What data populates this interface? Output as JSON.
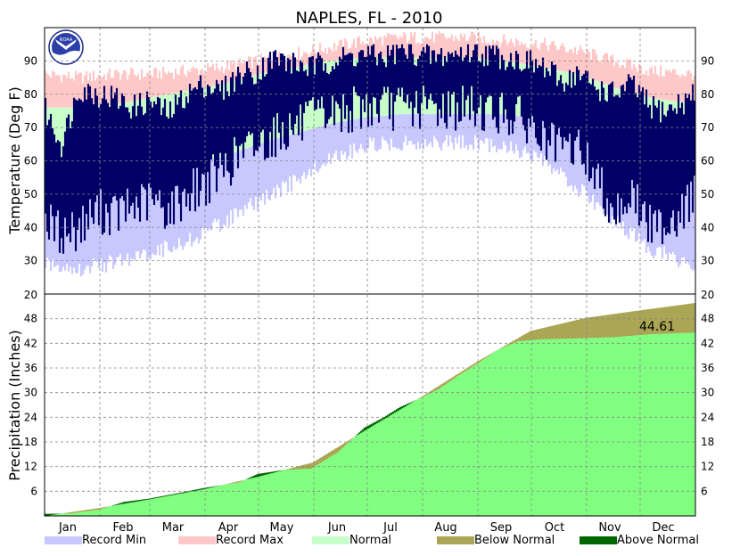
{
  "chart_data": {
    "type": "area",
    "title": "NAPLES, FL - 2010",
    "months": [
      "Jan",
      "Feb",
      "Mar",
      "Apr",
      "May",
      "Jun",
      "Jul",
      "Aug",
      "Sep",
      "Oct",
      "Nov",
      "Dec"
    ],
    "legend": [
      "Record Min",
      "Record Max",
      "Normal",
      "Below Normal",
      "Above Normal"
    ],
    "colors": {
      "record_min": "#c8c8ff",
      "record_max": "#ffc8c8",
      "normal": "#c8ffc8",
      "observed": "#000066",
      "precip_observed": "#80ff80",
      "below_normal": "#aaa655",
      "above_normal": "#006600"
    },
    "temperature": {
      "ylabel": "Temperature (Deg F)",
      "ylim": [
        20,
        100
      ],
      "yticks": [
        30,
        40,
        50,
        60,
        70,
        80,
        90
      ],
      "grid": true,
      "record_max": {
        "day": [
          1,
          20,
          40,
          60,
          80,
          100,
          120,
          140,
          160,
          180,
          200,
          220,
          240,
          260,
          280,
          300,
          320,
          340,
          365
        ],
        "value": [
          86,
          85,
          86,
          86,
          87,
          88,
          90,
          92,
          94,
          96,
          97,
          97,
          97,
          96,
          95,
          93,
          90,
          87,
          86
        ]
      },
      "normal_high": {
        "day": [
          1,
          20,
          40,
          60,
          80,
          100,
          120,
          140,
          160,
          180,
          200,
          220,
          240,
          260,
          280,
          300,
          320,
          340,
          365
        ],
        "value": [
          76,
          76,
          77,
          79,
          81,
          83,
          86,
          88,
          90,
          91,
          91,
          91,
          91,
          90,
          88,
          86,
          82,
          79,
          77
        ]
      },
      "normal_low": {
        "day": [
          1,
          20,
          40,
          60,
          80,
          100,
          120,
          140,
          160,
          180,
          200,
          220,
          240,
          260,
          280,
          300,
          320,
          340,
          365
        ],
        "value": [
          54,
          53,
          54,
          57,
          59,
          61,
          65,
          68,
          71,
          73,
          74,
          74,
          74,
          74,
          72,
          69,
          63,
          58,
          55
        ]
      },
      "record_min": {
        "day": [
          1,
          20,
          40,
          60,
          80,
          100,
          120,
          140,
          160,
          180,
          200,
          220,
          240,
          260,
          280,
          300,
          320,
          340,
          365
        ],
        "value": [
          32,
          30,
          32,
          35,
          38,
          44,
          50,
          56,
          63,
          67,
          68,
          68,
          68,
          67,
          62,
          54,
          45,
          36,
          31
        ]
      },
      "observed_high": {
        "day": [
          1,
          10,
          20,
          30,
          40,
          50,
          60,
          70,
          80,
          90,
          100,
          110,
          120,
          130,
          140,
          150,
          160,
          170,
          180,
          190,
          200,
          210,
          220,
          230,
          240,
          250,
          260,
          270,
          280,
          290,
          300,
          310,
          320,
          330,
          340,
          350,
          360,
          365
        ],
        "value": [
          75,
          65,
          82,
          80,
          79,
          76,
          78,
          74,
          80,
          83,
          81,
          86,
          87,
          91,
          89,
          88,
          90,
          91,
          92,
          91,
          93,
          92,
          91,
          92,
          93,
          92,
          91,
          90,
          88,
          84,
          86,
          82,
          80,
          83,
          76,
          75,
          78,
          80
        ]
      },
      "observed_low": {
        "day": [
          1,
          10,
          20,
          30,
          40,
          50,
          60,
          70,
          80,
          90,
          100,
          110,
          120,
          130,
          140,
          150,
          160,
          170,
          180,
          190,
          200,
          210,
          220,
          230,
          240,
          250,
          260,
          270,
          280,
          290,
          300,
          310,
          320,
          330,
          340,
          350,
          360,
          365
        ],
        "value": [
          42,
          38,
          40,
          45,
          44,
          46,
          48,
          45,
          50,
          53,
          57,
          62,
          65,
          68,
          70,
          72,
          74,
          75,
          76,
          76,
          76,
          76,
          76,
          76,
          76,
          75,
          74,
          72,
          66,
          63,
          64,
          55,
          45,
          50,
          40,
          42,
          45,
          52
        ]
      }
    },
    "precipitation": {
      "ylabel": "Precipitation (Inches)",
      "ylim": [
        0,
        54
      ],
      "yticks": [
        6,
        12,
        18,
        24,
        30,
        36,
        42,
        48
      ],
      "grid": true,
      "annotation": "44.61",
      "normal_cumulative": {
        "day": [
          1,
          31,
          59,
          90,
          120,
          151,
          181,
          212,
          243,
          273,
          304,
          334,
          365
        ],
        "value": [
          0,
          1.9,
          4.0,
          6.5,
          9.5,
          13.0,
          21.0,
          29.0,
          37.5,
          45.0,
          48.2,
          50.0,
          51.8
        ]
      },
      "observed_cumulative": {
        "day": [
          1,
          15,
          31,
          45,
          59,
          75,
          90,
          100,
          110,
          120,
          135,
          150,
          165,
          180,
          190,
          200,
          212,
          222,
          232,
          243,
          255,
          266,
          280,
          300,
          320,
          340,
          365
        ],
        "value": [
          0.5,
          0.6,
          1.5,
          3.4,
          4.2,
          5.5,
          6.8,
          7.5,
          8.2,
          10.2,
          11.2,
          11.5,
          15.5,
          21.5,
          23.8,
          26.5,
          28.8,
          31.0,
          34.0,
          37.0,
          40.5,
          42.5,
          43.0,
          43.2,
          43.5,
          44.2,
          44.61
        ]
      }
    }
  }
}
